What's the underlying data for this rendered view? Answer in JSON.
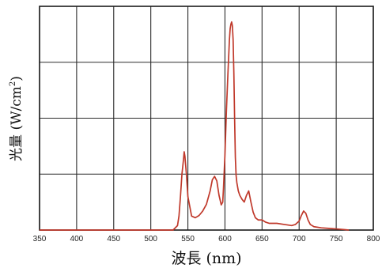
{
  "chart_data": {
    "type": "line",
    "xlabel": "波長 (nm)",
    "ylabel": {
      "main": "光量 (W/cm",
      "sup": "2",
      "close": ")"
    },
    "x_ticks": [
      "350",
      "400",
      "450",
      "500",
      "550",
      "600",
      "650",
      "700",
      "750",
      "800"
    ],
    "xlim": [
      350,
      800
    ],
    "ylim": [
      0,
      4
    ],
    "y_gridlines": 4,
    "grid": true,
    "series": [
      {
        "color": "#c0392b",
        "x": [
          350,
          530,
          536,
          538,
          540,
          542,
          544,
          545,
          546,
          548,
          550,
          555,
          560,
          565,
          570,
          575,
          580,
          583,
          586,
          589,
          592,
          595,
          597,
          598,
          600,
          602,
          604,
          606,
          607,
          608,
          609,
          610,
          611,
          612,
          613,
          614,
          615,
          616,
          618,
          620,
          623,
          626,
          629,
          632,
          635,
          638,
          641,
          645,
          650,
          655,
          660,
          670,
          680,
          690,
          695,
          700,
          703,
          706,
          709,
          712,
          715,
          720,
          730,
          740,
          750,
          760,
          767
        ],
        "y": [
          0,
          0,
          0.08,
          0.25,
          0.6,
          1.0,
          1.25,
          1.4,
          1.32,
          1.0,
          0.6,
          0.25,
          0.22,
          0.26,
          0.34,
          0.46,
          0.7,
          0.9,
          0.96,
          0.88,
          0.62,
          0.45,
          0.5,
          0.75,
          1.35,
          2.15,
          2.8,
          3.4,
          3.6,
          3.68,
          3.72,
          3.65,
          3.4,
          2.8,
          2.0,
          1.3,
          0.98,
          0.85,
          0.7,
          0.62,
          0.55,
          0.5,
          0.62,
          0.7,
          0.5,
          0.32,
          0.22,
          0.18,
          0.18,
          0.14,
          0.12,
          0.12,
          0.1,
          0.08,
          0.1,
          0.16,
          0.26,
          0.34,
          0.3,
          0.18,
          0.1,
          0.06,
          0.04,
          0.03,
          0.02,
          0.01,
          0
        ]
      }
    ]
  }
}
